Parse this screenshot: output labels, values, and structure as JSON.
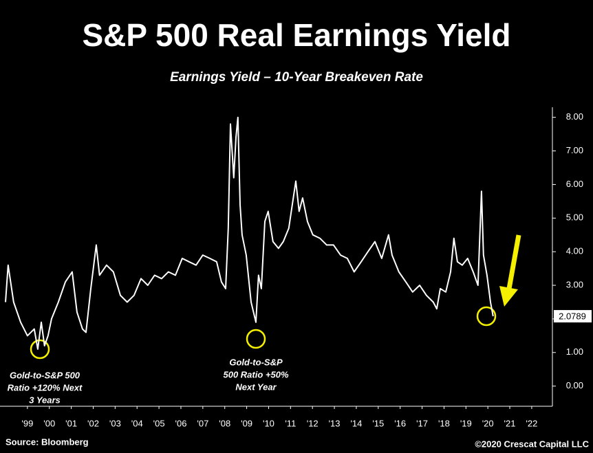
{
  "chart_data": {
    "type": "line",
    "title": "S&P 500 Real Earnings Yield",
    "subtitle": "Earnings Yield – 10-Year Breakeven Rate",
    "source": "Source: Bloomberg",
    "credit": "©2020 Crescat Capital LLC",
    "annotations": [
      {
        "lines": [
          "Gold-to-S&P 500",
          "Ratio +120% Next",
          "3 Years"
        ]
      },
      {
        "lines": [
          "Gold-to-S&P",
          "500 Ratio +50%",
          "Next Year"
        ]
      }
    ],
    "series": [
      {
        "color": "#ffffff",
        "x": [
          1998.5,
          1998.62,
          1998.87,
          1999.19,
          1999.5,
          1999.81,
          1999.97,
          2000.13,
          2000.28,
          2000.44,
          2000.6,
          2000.91,
          2001.23,
          2001.54,
          2001.76,
          2002.01,
          2002.17,
          2002.39,
          2002.64,
          2002.79,
          2003.11,
          2003.42,
          2003.74,
          2004.05,
          2004.36,
          2004.68,
          2004.99,
          2005.3,
          2005.62,
          2005.93,
          2006.25,
          2006.56,
          2006.87,
          2007.19,
          2007.5,
          2007.82,
          2008.13,
          2008.35,
          2008.54,
          2008.66,
          2008.76,
          2008.91,
          2009.01,
          2009.1,
          2009.2,
          2009.29,
          2009.48,
          2009.7,
          2009.92,
          2010.04,
          2010.17,
          2010.33,
          2010.48,
          2010.7,
          2010.95,
          2011.17,
          2011.42,
          2011.58,
          2011.74,
          2011.89,
          2012.05,
          2012.27,
          2012.52,
          2012.84,
          2013.15,
          2013.46,
          2013.78,
          2014.09,
          2014.4,
          2014.72,
          2015.03,
          2015.35,
          2015.66,
          2015.97,
          2016.13,
          2016.44,
          2016.76,
          2017.07,
          2017.39,
          2017.7,
          2018.01,
          2018.17,
          2018.33,
          2018.58,
          2018.8,
          2018.95,
          2019.11,
          2019.33,
          2019.58,
          2019.83,
          2020.05,
          2020.21,
          2020.3,
          2020.46,
          2020.62,
          2020.74
        ],
        "values": [
          2.5,
          3.6,
          2.5,
          1.9,
          1.5,
          1.7,
          1.1,
          1.9,
          1.2,
          1.5,
          2.0,
          2.5,
          3.1,
          3.4,
          2.2,
          1.7,
          1.6,
          2.9,
          4.2,
          3.3,
          3.6,
          3.4,
          2.7,
          2.5,
          2.7,
          3.2,
          3.0,
          3.3,
          3.2,
          3.4,
          3.3,
          3.8,
          3.7,
          3.6,
          3.9,
          3.8,
          3.7,
          3.1,
          2.9,
          4.7,
          7.8,
          6.2,
          7.4,
          8.0,
          5.4,
          4.5,
          3.9,
          2.5,
          1.9,
          3.3,
          2.9,
          4.9,
          5.2,
          4.3,
          4.1,
          4.3,
          4.7,
          5.4,
          6.1,
          5.2,
          5.6,
          4.9,
          4.5,
          4.4,
          4.2,
          4.2,
          3.9,
          3.8,
          3.4,
          3.7,
          4.0,
          4.3,
          3.8,
          4.5,
          3.9,
          3.4,
          3.1,
          2.8,
          3.0,
          2.7,
          2.5,
          2.3,
          2.9,
          2.8,
          3.4,
          4.4,
          3.7,
          3.6,
          3.8,
          3.4,
          3.0,
          5.8,
          3.9,
          3.3,
          2.5,
          2.0789
        ]
      }
    ],
    "xlim": [
      1998.5,
      2023.35
    ],
    "xticks": [
      {
        "value": 1999.5,
        "label": "'99"
      },
      {
        "value": 2000.5,
        "label": "'00"
      },
      {
        "value": 2001.5,
        "label": "'01"
      },
      {
        "value": 2002.5,
        "label": "'02"
      },
      {
        "value": 2003.5,
        "label": "'03"
      },
      {
        "value": 2004.5,
        "label": "'04"
      },
      {
        "value": 2005.5,
        "label": "'05"
      },
      {
        "value": 2006.5,
        "label": "'06"
      },
      {
        "value": 2007.5,
        "label": "'07"
      },
      {
        "value": 2008.5,
        "label": "'08"
      },
      {
        "value": 2009.5,
        "label": "'09"
      },
      {
        "value": 2010.5,
        "label": "'10"
      },
      {
        "value": 2011.5,
        "label": "'11"
      },
      {
        "value": 2012.5,
        "label": "'12"
      },
      {
        "value": 2013.5,
        "label": "'13"
      },
      {
        "value": 2014.5,
        "label": "'14"
      },
      {
        "value": 2015.5,
        "label": "'15"
      },
      {
        "value": 2016.5,
        "label": "'16"
      },
      {
        "value": 2017.5,
        "label": "'17"
      },
      {
        "value": 2018.5,
        "label": "'18"
      },
      {
        "value": 2019.5,
        "label": "'19"
      },
      {
        "value": 2020.5,
        "label": "'20"
      },
      {
        "value": 2021.5,
        "label": "'21"
      },
      {
        "value": 2022.5,
        "label": "'22"
      }
    ],
    "ylim": [
      -0.6,
      8.3
    ],
    "yticks": [
      {
        "value": 0,
        "label": "0.00"
      },
      {
        "value": 1,
        "label": "1.00"
      },
      {
        "value": 2,
        "label": "2.00"
      },
      {
        "value": 3,
        "label": "3.00"
      },
      {
        "value": 4,
        "label": "4.00"
      },
      {
        "value": 5,
        "label": "5.00"
      },
      {
        "value": 6,
        "label": "6.00"
      },
      {
        "value": 7,
        "label": "7.00"
      },
      {
        "value": 8,
        "label": "8.00"
      }
    ],
    "grid": false
  }
}
